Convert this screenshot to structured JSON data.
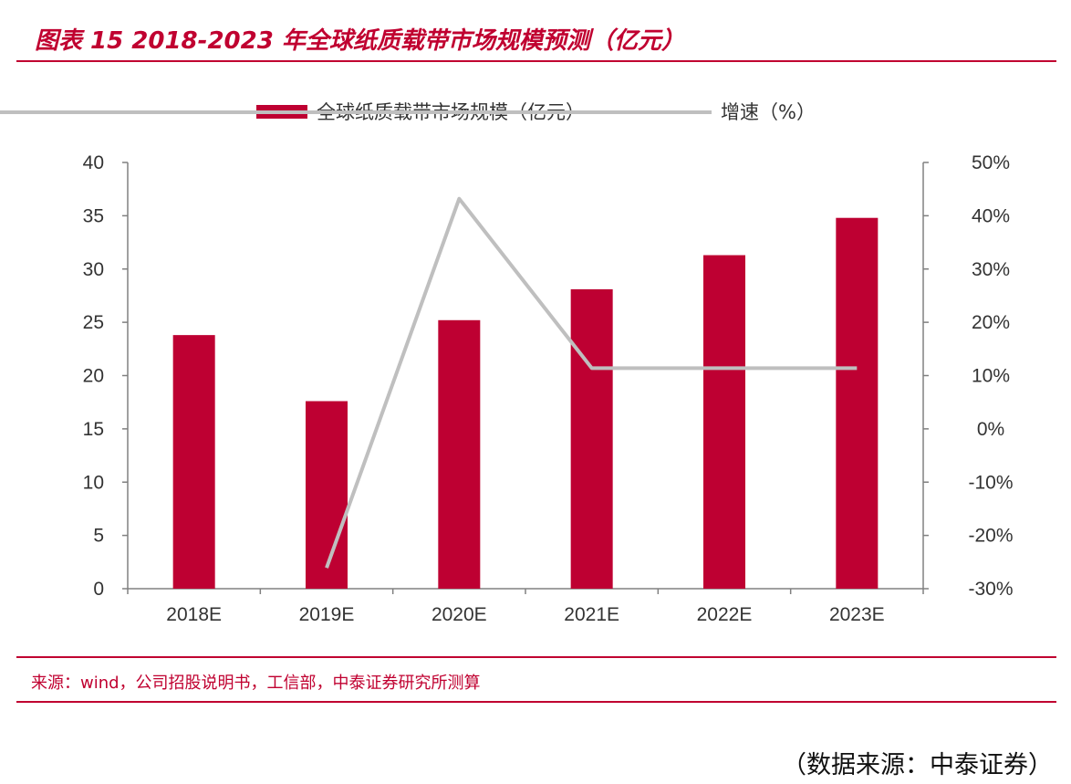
{
  "header": {
    "title": "图表 15 2018-2023 年全球纸质载带市场规模预测（亿元）"
  },
  "colors": {
    "accent": "#c00030",
    "bar": "#be0032",
    "line": "#bfbfbf",
    "axis": "#808080"
  },
  "chart_data": {
    "type": "bar",
    "title": "",
    "categories": [
      "2018E",
      "2019E",
      "2020E",
      "2021E",
      "2022E",
      "2023E"
    ],
    "series": [
      {
        "name": "全球纸质载带市场规模（亿元）",
        "type": "bar",
        "axis": "left",
        "values": [
          23.8,
          17.6,
          25.2,
          28.1,
          31.3,
          34.8
        ]
      },
      {
        "name": "增速（%）",
        "type": "line",
        "axis": "right",
        "values": [
          null,
          -26.1,
          43.2,
          11.4,
          11.4,
          11.4
        ]
      }
    ],
    "ylim": [
      0,
      40
    ],
    "yticks": [
      "0",
      "5",
      "10",
      "15",
      "20",
      "25",
      "30",
      "35",
      "40"
    ],
    "y2lim": [
      -30,
      50
    ],
    "y2ticks": [
      "-30%",
      "-20%",
      "-10%",
      "0%",
      "10%",
      "20%",
      "30%",
      "40%",
      "50%"
    ],
    "legend_position": "top-center",
    "grid": false
  },
  "source": {
    "text": "来源：wind，公司招股说明书，工信部，中泰证券研究所测算"
  },
  "footer": {
    "text": "（数据来源：中泰证券）"
  }
}
